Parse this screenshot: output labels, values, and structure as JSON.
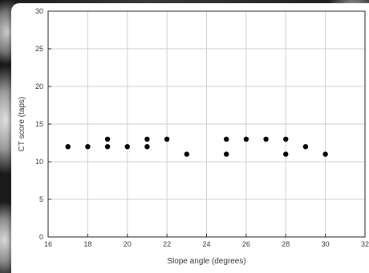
{
  "chart_data": {
    "type": "scatter",
    "title": "",
    "xlabel": "Slope angle (degrees)",
    "ylabel": "CT score (taps)",
    "xlim": [
      16,
      32
    ],
    "ylim": [
      0,
      30
    ],
    "xticks": [
      16,
      18,
      20,
      22,
      24,
      26,
      28,
      30,
      32
    ],
    "yticks": [
      0,
      5,
      10,
      15,
      20,
      25,
      30
    ],
    "grid": true,
    "legend": "none",
    "marker_color": "#000000",
    "points": [
      {
        "x": 17,
        "y": 12
      },
      {
        "x": 18,
        "y": 12
      },
      {
        "x": 19,
        "y": 13
      },
      {
        "x": 19,
        "y": 12
      },
      {
        "x": 20,
        "y": 12
      },
      {
        "x": 21,
        "y": 13
      },
      {
        "x": 21,
        "y": 12
      },
      {
        "x": 22,
        "y": 13
      },
      {
        "x": 23,
        "y": 11
      },
      {
        "x": 25,
        "y": 13
      },
      {
        "x": 25,
        "y": 11
      },
      {
        "x": 26,
        "y": 13
      },
      {
        "x": 27,
        "y": 13
      },
      {
        "x": 28,
        "y": 13
      },
      {
        "x": 28,
        "y": 11
      },
      {
        "x": 29,
        "y": 12
      },
      {
        "x": 30,
        "y": 11
      }
    ]
  }
}
